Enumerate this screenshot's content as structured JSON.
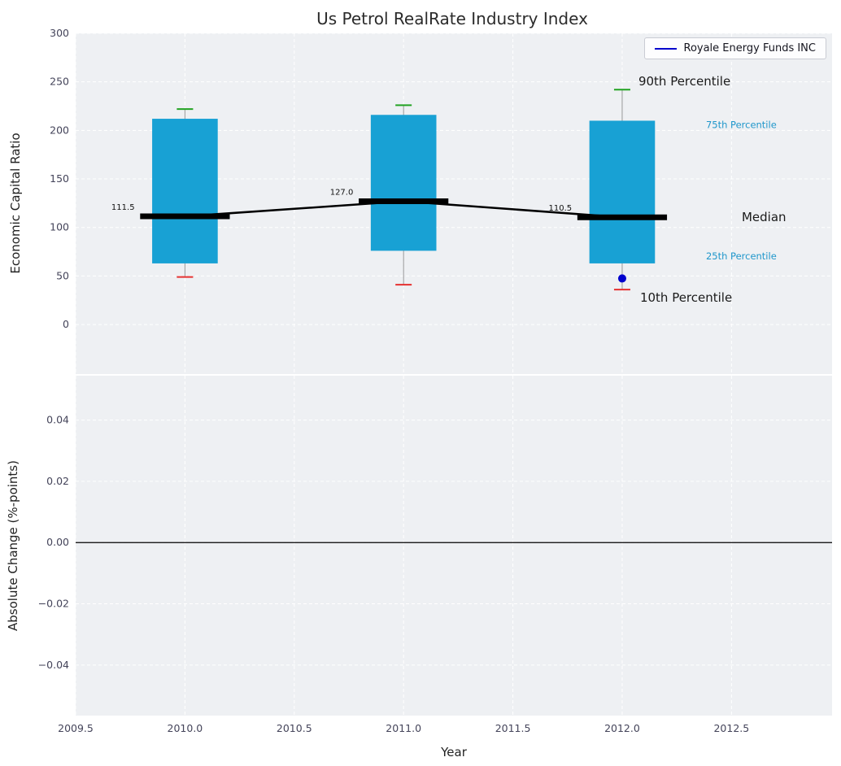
{
  "title": "Us Petrol RealRate Industry Index",
  "legend": {
    "label": "Royale Energy Funds INC",
    "line_color": "#0000cd"
  },
  "x_axis": {
    "label": "Year",
    "xlim": [
      2009.5,
      2012.96
    ],
    "tick_values": [
      2009.5,
      2010.0,
      2010.5,
      2011.0,
      2011.5,
      2012.0,
      2012.5
    ],
    "tick_labels": [
      "2009.5",
      "2010.0",
      "2010.5",
      "2011.0",
      "2011.5",
      "2012.0",
      "2012.5"
    ]
  },
  "style": {
    "plot_bg": "#eef0f3",
    "grid_color": "#ffffff",
    "tick_color": "#44445a",
    "title_color": "#2b2b2b"
  },
  "chart_data": [
    {
      "type": "box-whisker with median trend line",
      "ylabel": "Economic Capital Ratio",
      "ylim": [
        -51,
        300
      ],
      "ytick_values": [
        0,
        50,
        100,
        150,
        200,
        250,
        300
      ],
      "ytick_labels": [
        "0",
        "50",
        "100",
        "150",
        "200",
        "250",
        "300"
      ],
      "grid": true,
      "legend_position": "upper right",
      "boxes": [
        {
          "year": 2010,
          "p10": 49,
          "p25": 63,
          "median": 111.5,
          "p75": 212,
          "p90": 222,
          "median_label": "111.5"
        },
        {
          "year": 2011,
          "p10": 41,
          "p25": 76,
          "median": 127.0,
          "p75": 216,
          "p90": 226,
          "median_label": "127.0"
        },
        {
          "year": 2012,
          "p10": 36,
          "p25": 63,
          "median": 110.5,
          "p75": 210,
          "p90": 242,
          "median_label": "110.5"
        }
      ],
      "median_line": {
        "x": [
          2010,
          2011,
          2012
        ],
        "y": [
          111.5,
          127.0,
          110.5
        ]
      },
      "company_point": {
        "x": 2012,
        "y": 47.5,
        "series": "Royale Energy Funds INC"
      },
      "annotations": [
        {
          "text": "90th Percentile",
          "anchor": "p90",
          "anchor_year": 2012,
          "color": "#1a1a1a",
          "size": 15
        },
        {
          "text": "75th Percentile",
          "anchor": "p75",
          "anchor_year": 2012,
          "color": "#2097cb",
          "size": 11.5
        },
        {
          "text": "Median",
          "anchor": "median",
          "anchor_year": 2012,
          "color": "#1a1a1a",
          "size": 15
        },
        {
          "text": "25th Percentile",
          "anchor": "p25",
          "anchor_year": 2012,
          "color": "#2097cb",
          "size": 11.5
        },
        {
          "text": "10th Percentile",
          "anchor": "p10",
          "anchor_year": 2012,
          "color": "#1a1a1a",
          "size": 15
        }
      ],
      "colors": {
        "box": "#18a1d4",
        "whisker": "#999999",
        "cap_top": "#22a322",
        "cap_bottom": "#e53030",
        "median": "#000000",
        "point": "#0000cd"
      }
    },
    {
      "type": "line",
      "ylabel": "Absolute Change (%-points)",
      "ylim": [
        -0.0565,
        0.0545
      ],
      "ytick_values": [
        -0.04,
        -0.02,
        0.0,
        0.02,
        0.04
      ],
      "ytick_labels": [
        "−0.04",
        "−0.02",
        "0.00",
        "0.02",
        "0.04"
      ],
      "grid": true,
      "zero_line": 0.0,
      "series": []
    }
  ]
}
